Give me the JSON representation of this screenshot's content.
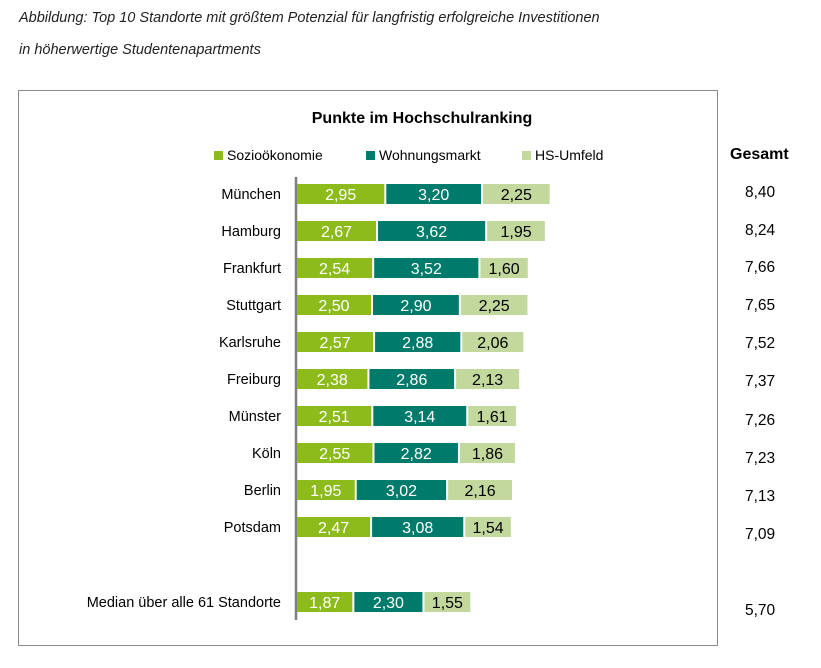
{
  "caption": {
    "line1": "Abbildung: Top 10 Standorte mit größtem Potenzial für langfristig erfolgreiche Investitionen",
    "line2": "in höherwertige Studentenapartments"
  },
  "colors": {
    "sozio": "#8dbb1b",
    "wohnung": "#007a6a",
    "hs": "#c2d89c",
    "axis": "#7f7f7f"
  },
  "chart_data": {
    "type": "bar",
    "orientation": "horizontal",
    "stacked": true,
    "title": "Punkte im Hochschulranking",
    "legend": [
      "Sozioökonomie",
      "Wohnungsmarkt",
      "HS-Umfeld"
    ],
    "legend_position": "top",
    "total_label": "Gesamt",
    "categories": [
      "München",
      "Hamburg",
      "Frankfurt",
      "Stuttgart",
      "Karlsruhe",
      "Freiburg",
      "Münster",
      "Köln",
      "Berlin",
      "Potsdam",
      "Median über alle 61 Standorte"
    ],
    "series": [
      {
        "name": "Sozioökonomie",
        "values": [
          2.95,
          2.67,
          2.54,
          2.5,
          2.57,
          2.38,
          2.51,
          2.55,
          1.95,
          2.47,
          1.87
        ],
        "labels": [
          "2,95",
          "2,67",
          "2,54",
          "2,50",
          "2,57",
          "2,38",
          "2,51",
          "2,55",
          "1,95",
          "2,47",
          "1,87"
        ]
      },
      {
        "name": "Wohnungsmarkt",
        "values": [
          3.2,
          3.62,
          3.52,
          2.9,
          2.88,
          2.86,
          3.14,
          2.82,
          3.02,
          3.08,
          2.3
        ],
        "labels": [
          "3,20",
          "3,62",
          "3,52",
          "2,90",
          "2,88",
          "2,86",
          "3,14",
          "2,82",
          "3,02",
          "3,08",
          "2,30"
        ]
      },
      {
        "name": "HS-Umfeld",
        "values": [
          2.25,
          1.95,
          1.6,
          2.25,
          2.06,
          2.13,
          1.61,
          1.86,
          2.16,
          1.54,
          1.55
        ],
        "labels": [
          "2,25",
          "1,95",
          "1,60",
          "2,25",
          "2,06",
          "2,13",
          "1,61",
          "1,86",
          "2,16",
          "1,54",
          "1,55"
        ]
      }
    ],
    "totals": [
      "8,40",
      "8,24",
      "7,66",
      "7,65",
      "7,52",
      "7,37",
      "7,26",
      "7,23",
      "7,13",
      "7,09",
      "5,70"
    ],
    "xlim": [
      0,
      8.4
    ]
  }
}
